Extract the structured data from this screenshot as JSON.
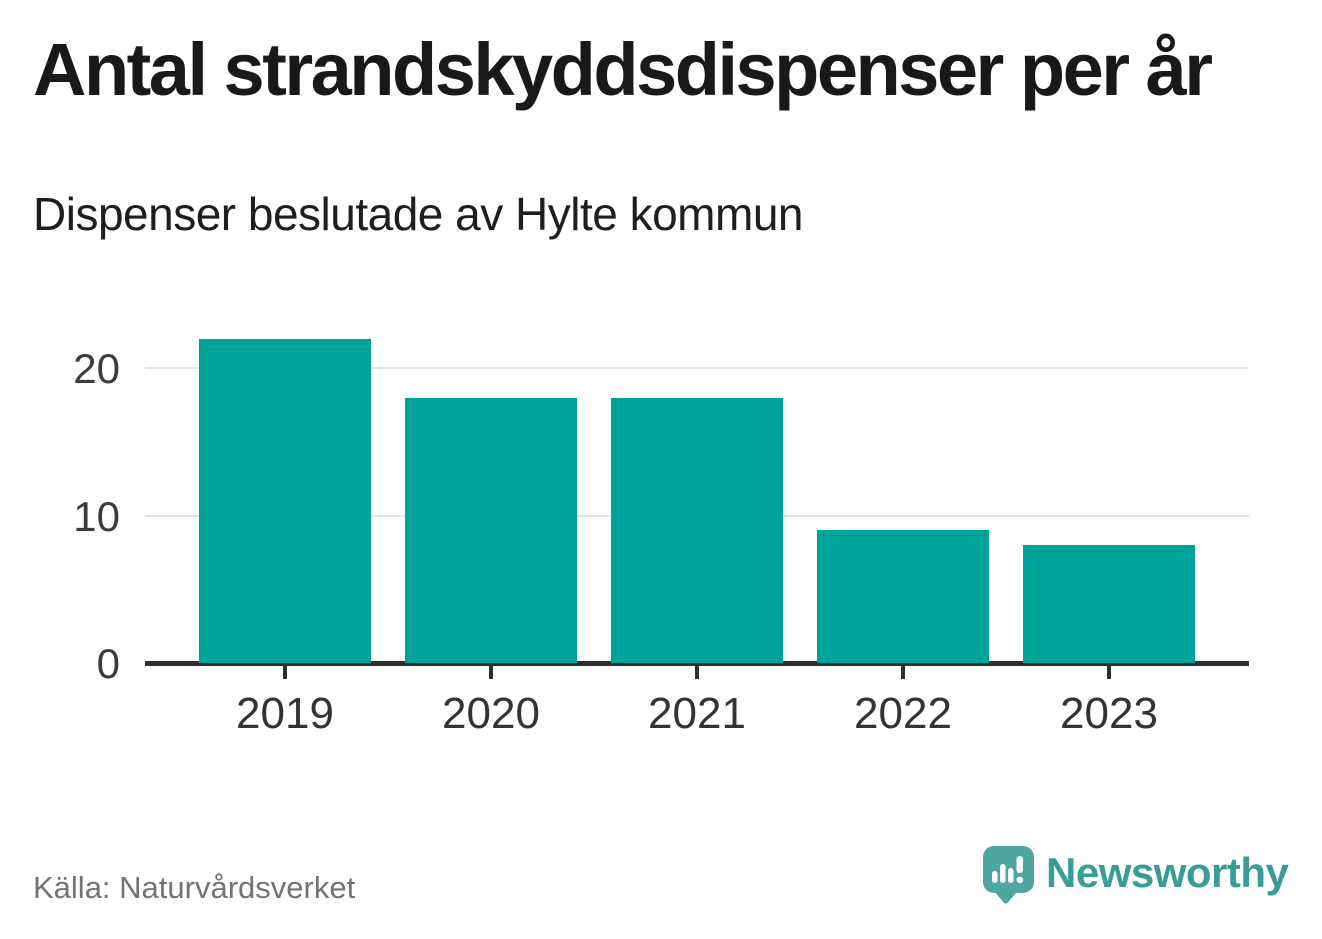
{
  "chart": {
    "title": "Antal strandskyddsdispenser per år",
    "subtitle": "Dispenser beslutade av Hylte kommun",
    "source": "Källa: Naturvårdsverket"
  },
  "branding": {
    "wordmark": "Newsworthy",
    "icon": "bar-chart-speech-bubble-icon",
    "icon_color": "#4fa6a1",
    "wordmark_color": "#399c97"
  },
  "chart_data": {
    "type": "bar",
    "categories": [
      "2019",
      "2020",
      "2021",
      "2022",
      "2023"
    ],
    "values": [
      22,
      18,
      18,
      9,
      8
    ],
    "title": "Antal strandskyddsdispenser per år",
    "subtitle": "Dispenser beslutade av Hylte kommun",
    "xlabel": "",
    "ylabel": "",
    "yticks": [
      0,
      10,
      20
    ],
    "ylim": [
      0,
      24
    ],
    "bar_color": "#00a39a",
    "grid": "horizontal-only",
    "legend": "none",
    "source": "Källa: Naturvårdsverket"
  }
}
